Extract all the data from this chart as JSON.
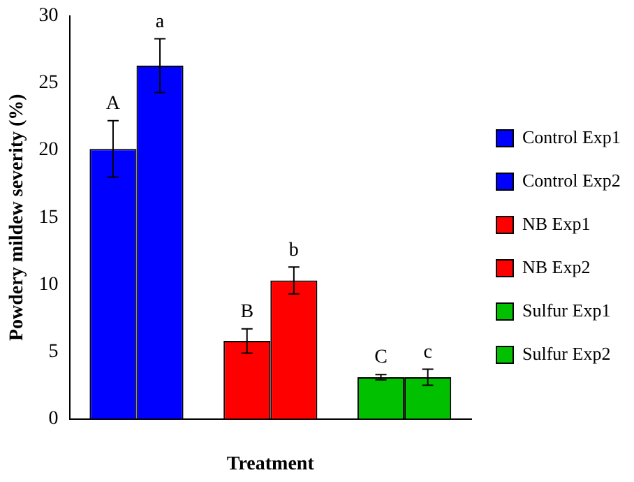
{
  "chart_data": {
    "type": "bar",
    "xlabel": "Treatment",
    "ylabel": "Powdery mildew severity (%)",
    "categories": [
      null,
      null,
      null
    ],
    "series": [
      {
        "name": "Control Exp1",
        "color": "#0000ff",
        "values": [
          20.1,
          null,
          null
        ],
        "errors": [
          2.1,
          null,
          null
        ]
      },
      {
        "name": "Control Exp2",
        "color": "#0000ff",
        "values": [
          26.3,
          null,
          null
        ],
        "errors": [
          2.0,
          null,
          null
        ]
      },
      {
        "name": "NB Exp1",
        "color": "#ff0000",
        "values": [
          null,
          5.8,
          null
        ],
        "errors": [
          null,
          0.9,
          null
        ]
      },
      {
        "name": "NB Exp2",
        "color": "#ff0000",
        "values": [
          null,
          10.3,
          null
        ],
        "errors": [
          null,
          1.0,
          null
        ]
      },
      {
        "name": "Sulfur Exp1",
        "color": "#00c000",
        "values": [
          null,
          null,
          3.1
        ],
        "errors": [
          null,
          null,
          0.2
        ]
      },
      {
        "name": "Sulfur Exp2",
        "color": "#00c000",
        "values": [
          null,
          null,
          3.1
        ],
        "errors": [
          null,
          null,
          0.6
        ]
      }
    ],
    "annotations": [
      "A",
      "a",
      "B",
      "b",
      "C",
      "c"
    ],
    "ylim": [
      0,
      30
    ],
    "yticks": [
      0,
      5,
      10,
      15,
      20,
      25,
      30
    ],
    "grid": false,
    "legend": "right"
  }
}
